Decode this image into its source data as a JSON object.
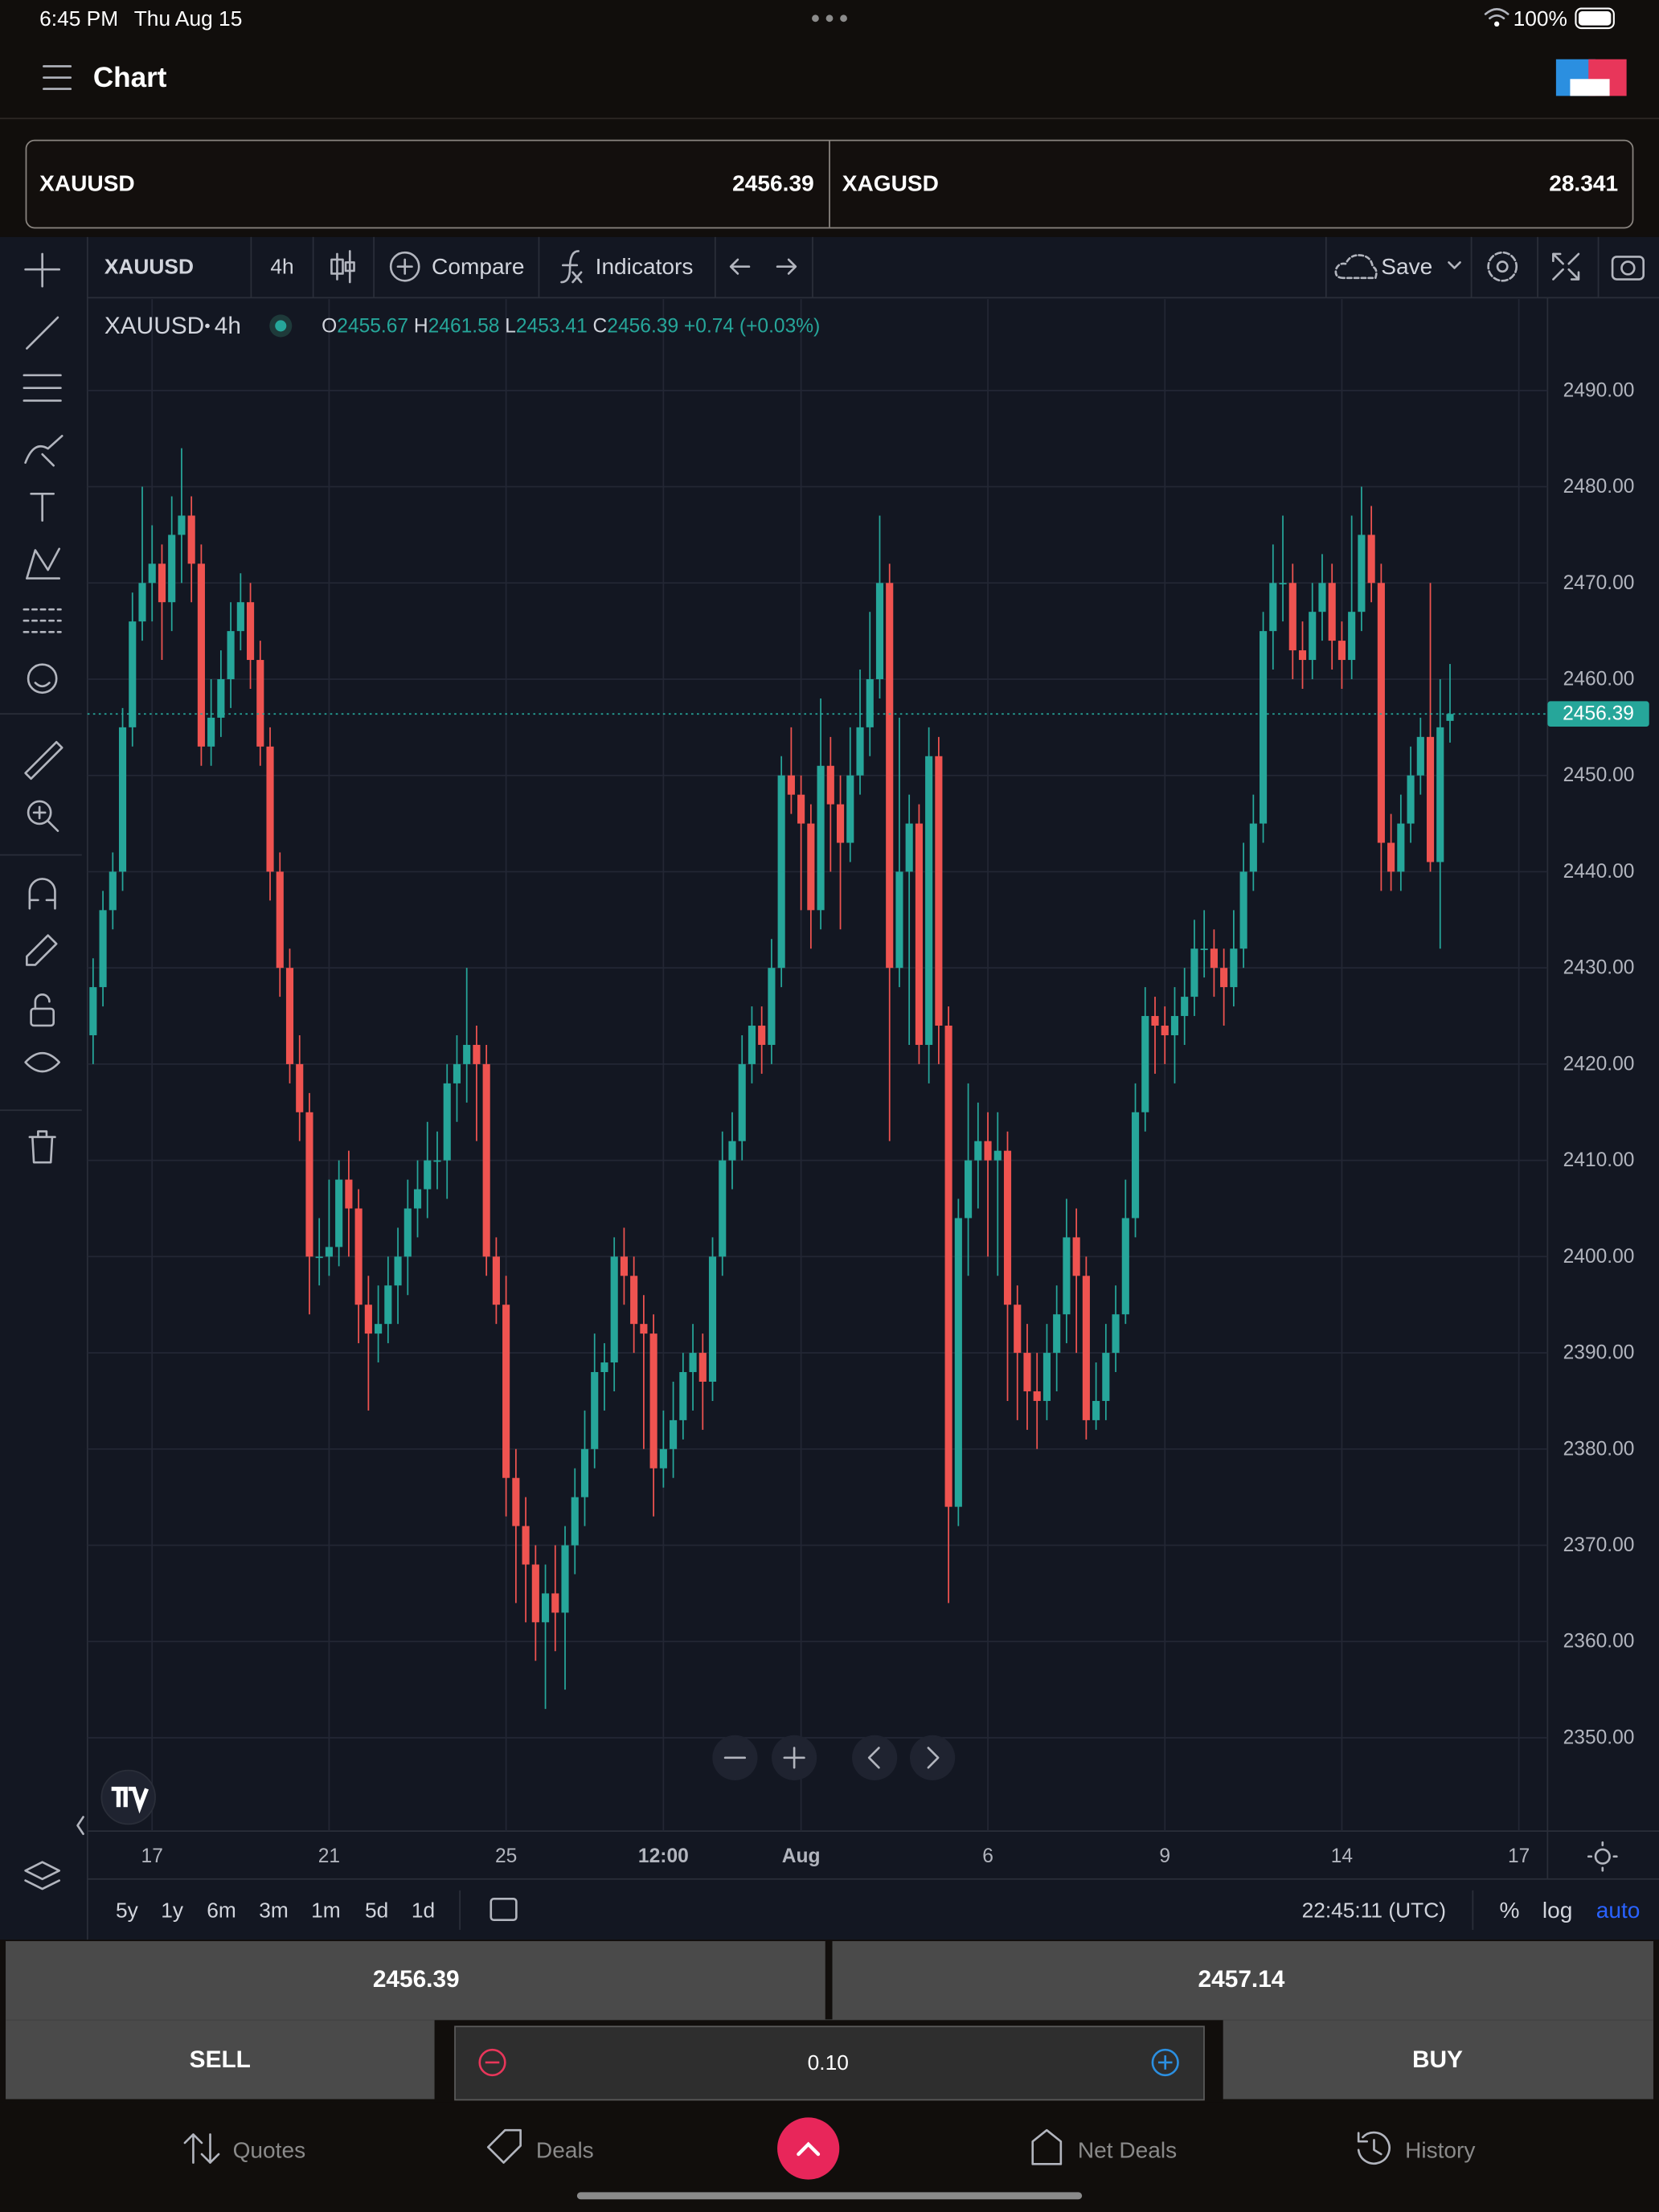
{
  "status_bar": {
    "time": "6:45 PM",
    "date": "Thu Aug 15",
    "battery": "100%"
  },
  "header": {
    "title": "Chart"
  },
  "symbols": [
    {
      "name": "XAUUSD",
      "price": "2456.39"
    },
    {
      "name": "XAGUSD",
      "price": "28.341"
    }
  ],
  "toolbar": {
    "symbol": "XAUUSD",
    "interval": "4h",
    "compare": "Compare",
    "indicators": "Indicators",
    "save": "Save"
  },
  "legend": {
    "symbol": "XAUUSD",
    "interval": "4h",
    "labels": [
      "O",
      "H",
      "L",
      "C"
    ],
    "change": "+0.74 (+0.03%)"
  },
  "chart_data": {
    "type": "candlestick",
    "up_color": "#26a69a",
    "down_color": "#ef5350",
    "grid": true,
    "ylim": [
      2340.3,
      2499.5
    ],
    "yticks": [
      {
        "value": 2350,
        "label": "2350.00"
      },
      {
        "value": 2360,
        "label": "2360.00"
      },
      {
        "value": 2370,
        "label": "2370.00"
      },
      {
        "value": 2380,
        "label": "2380.00"
      },
      {
        "value": 2390,
        "label": "2390.00"
      },
      {
        "value": 2400,
        "label": "2400.00"
      },
      {
        "value": 2410,
        "label": "2410.00"
      },
      {
        "value": 2420,
        "label": "2420.00"
      },
      {
        "value": 2430,
        "label": "2430.00"
      },
      {
        "value": 2440,
        "label": "2440.00"
      },
      {
        "value": 2450,
        "label": "2450.00"
      },
      {
        "value": 2460,
        "label": "2460.00"
      },
      {
        "value": 2470,
        "label": "2470.00"
      },
      {
        "value": 2480,
        "label": "2480.00"
      },
      {
        "value": 2490,
        "label": "2490.00"
      }
    ],
    "categories": [
      null,
      null,
      null,
      null,
      null,
      null,
      "17",
      null,
      null,
      null,
      null,
      null,
      null,
      null,
      null,
      null,
      null,
      null,
      null,
      null,
      null,
      null,
      null,
      null,
      "21",
      null,
      null,
      null,
      null,
      null,
      null,
      null,
      null,
      null,
      null,
      null,
      null,
      null,
      null,
      null,
      null,
      null,
      "25",
      null,
      null,
      null,
      null,
      null,
      null,
      null,
      null,
      null,
      null,
      null,
      null,
      null,
      null,
      null,
      "12:00",
      null,
      null,
      null,
      null,
      null,
      null,
      null,
      null,
      null,
      null,
      null,
      null,
      null,
      "Aug",
      null,
      null,
      null,
      null,
      null,
      null,
      null,
      null,
      null,
      null,
      null,
      null,
      null,
      null,
      null,
      null,
      null,
      null,
      "6",
      null,
      null,
      null,
      null,
      null,
      null,
      null,
      null,
      null,
      null,
      null,
      null,
      null,
      null,
      null,
      null,
      null,
      "9",
      null,
      null,
      null,
      null,
      null,
      null,
      null,
      null,
      null,
      null,
      null,
      null,
      null,
      null,
      null,
      null,
      null,
      "14",
      null,
      null,
      null,
      null,
      null,
      null,
      null,
      null,
      null,
      null,
      null,
      null,
      null,
      null,
      null,
      null,
      null,
      "17"
    ],
    "open": [
      2423,
      2428,
      2436,
      2440,
      2455,
      2466,
      2470,
      2472,
      2468,
      2475,
      2477,
      2472,
      2453,
      2456,
      2460,
      2465,
      2468,
      2462,
      2453,
      2440,
      2430,
      2420,
      2415,
      2400,
      2400,
      2401,
      2408,
      2405,
      2395,
      2392,
      2393,
      2397,
      2400,
      2405,
      2407,
      2410,
      2410,
      2418,
      2420,
      2422,
      2420,
      2400,
      2395,
      2377,
      2372,
      2368,
      2362,
      2365,
      2363,
      2370,
      2375,
      2380,
      2388,
      2389,
      2400,
      2398,
      2393,
      2392,
      2378,
      2380,
      2383,
      2388,
      2390,
      2387,
      2400,
      2410,
      2412,
      2420,
      2424,
      2422,
      2430,
      2450,
      2448,
      2445,
      2436,
      2451,
      2447,
      2443,
      2450,
      2455,
      2460,
      2470,
      2430,
      2440,
      2445,
      2422,
      2452,
      2424,
      2374,
      2404,
      2410,
      2412,
      2410,
      2411,
      2395,
      2390,
      2386,
      2385,
      2390,
      2394,
      2402,
      2398,
      2383,
      2385,
      2390,
      2394,
      2404,
      2415,
      2425,
      2424,
      2423,
      2425,
      2427,
      2432,
      2432,
      2430,
      2428,
      2432,
      2440,
      2445,
      2465,
      2470,
      2470,
      2463,
      2462,
      2467,
      2470,
      2464,
      2462,
      2467,
      2475,
      2470,
      2443,
      2440,
      2445,
      2450,
      2454,
      2441,
      2455.67,
      null,
      null,
      null,
      null,
      null,
      null,
      null
    ],
    "high": [
      2431,
      2438,
      2442,
      2457,
      2469,
      2480,
      2476,
      2474,
      2479,
      2484,
      2479,
      2474,
      2460,
      2463,
      2468,
      2471,
      2470,
      2464,
      2455,
      2442,
      2432,
      2423,
      2417,
      2404,
      2408,
      2410,
      2411,
      2407,
      2398,
      2397,
      2400,
      2403,
      2408,
      2410,
      2414,
      2413,
      2420,
      2423,
      2430,
      2424,
      2422,
      2402,
      2398,
      2380,
      2375,
      2370,
      2368,
      2370,
      2372,
      2378,
      2384,
      2392,
      2391,
      2402,
      2403,
      2400,
      2396,
      2394,
      2384,
      2387,
      2390,
      2393,
      2392,
      2402,
      2413,
      2415,
      2423,
      2426,
      2426,
      2433,
      2452,
      2455,
      2450,
      2447,
      2458,
      2454,
      2450,
      2455,
      2461,
      2467,
      2477,
      2472,
      2456,
      2448,
      2447,
      2455,
      2454,
      2426,
      2406,
      2418,
      2416,
      2415,
      2415,
      2413,
      2397,
      2393,
      2390,
      2393,
      2397,
      2406,
      2405,
      2400,
      2389,
      2393,
      2397,
      2408,
      2418,
      2428,
      2427,
      2426,
      2428,
      2430,
      2435,
      2436,
      2434,
      2432,
      2436,
      2443,
      2448,
      2467,
      2474,
      2477,
      2472,
      2466,
      2470,
      2473,
      2472,
      2466,
      2477,
      2480,
      2478,
      2472,
      2446,
      2448,
      2453,
      2456,
      2470,
      2460,
      2461.58,
      null,
      null,
      null,
      null,
      null,
      null,
      null
    ],
    "low": [
      2420,
      2426,
      2434,
      2438,
      2453,
      2464,
      2466,
      2462,
      2465,
      2470,
      2468,
      2451,
      2451,
      2454,
      2457,
      2463,
      2459,
      2451,
      2437,
      2427,
      2418,
      2412,
      2394,
      2397,
      2398,
      2399,
      2400,
      2391,
      2384,
      2389,
      2391,
      2393,
      2396,
      2402,
      2404,
      2407,
      2406,
      2414,
      2416,
      2412,
      2398,
      2393,
      2373,
      2364,
      2362,
      2358,
      2353,
      2359,
      2355,
      2367,
      2372,
      2378,
      2384,
      2386,
      2395,
      2390,
      2380,
      2373,
      2376,
      2377,
      2381,
      2384,
      2382,
      2385,
      2398,
      2407,
      2410,
      2418,
      2419,
      2420,
      2428,
      2446,
      2436,
      2432,
      2434,
      2440,
      2434,
      2441,
      2448,
      2452,
      2458,
      2412,
      2428,
      2422,
      2420,
      2418,
      2420,
      2364,
      2372,
      2398,
      2405,
      2400,
      2398,
      2385,
      2383,
      2382,
      2380,
      2383,
      2386,
      2391,
      2390,
      2381,
      2382,
      2383,
      2388,
      2393,
      2402,
      2413,
      2419,
      2420,
      2418,
      2422,
      2425,
      2429,
      2427,
      2424,
      2426,
      2430,
      2438,
      2443,
      2461,
      2466,
      2460,
      2459,
      2460,
      2464,
      2461,
      2459,
      2460,
      2465,
      2468,
      2438,
      2438,
      2438,
      2443,
      2448,
      2440,
      2432,
      2453.41,
      null,
      null,
      null,
      null,
      null,
      null,
      null
    ],
    "close": [
      2428,
      2436,
      2440,
      2455,
      2466,
      2470,
      2472,
      2468,
      2475,
      2477,
      2472,
      2453,
      2456,
      2460,
      2465,
      2468,
      2462,
      2453,
      2440,
      2430,
      2420,
      2415,
      2400,
      2400,
      2401,
      2408,
      2405,
      2395,
      2392,
      2393,
      2397,
      2400,
      2405,
      2407,
      2410,
      2410,
      2418,
      2420,
      2422,
      2420,
      2400,
      2395,
      2377,
      2372,
      2368,
      2362,
      2365,
      2363,
      2370,
      2375,
      2380,
      2388,
      2389,
      2400,
      2398,
      2393,
      2392,
      2378,
      2380,
      2383,
      2388,
      2390,
      2387,
      2400,
      2410,
      2412,
      2420,
      2424,
      2422,
      2430,
      2450,
      2448,
      2445,
      2436,
      2451,
      2447,
      2443,
      2450,
      2455,
      2460,
      2470,
      2430,
      2440,
      2445,
      2422,
      2452,
      2424,
      2374,
      2404,
      2410,
      2412,
      2410,
      2411,
      2395,
      2390,
      2386,
      2385,
      2390,
      2394,
      2402,
      2398,
      2383,
      2385,
      2390,
      2394,
      2404,
      2415,
      2425,
      2424,
      2423,
      2425,
      2427,
      2432,
      2432,
      2430,
      2428,
      2432,
      2440,
      2445,
      2465,
      2470,
      2470,
      2463,
      2462,
      2467,
      2470,
      2464,
      2462,
      2467,
      2475,
      2470,
      2443,
      2440,
      2445,
      2450,
      2454,
      2441,
      2455,
      2456.39,
      null,
      null,
      null,
      null,
      null,
      null,
      null
    ]
  },
  "time_bar": {
    "ranges": [
      "5y",
      "1y",
      "6m",
      "3m",
      "1m",
      "5d",
      "1d"
    ],
    "clock": "22:45:11 (UTC)",
    "percent": "%",
    "log": "log",
    "auto": "auto"
  },
  "trade": {
    "sell_price": "2456.39",
    "buy_price": "2457.14",
    "sell": "SELL",
    "buy": "BUY",
    "quantity": "0.10"
  },
  "nav": [
    "Quotes",
    "Deals",
    "Net Deals",
    "History"
  ]
}
